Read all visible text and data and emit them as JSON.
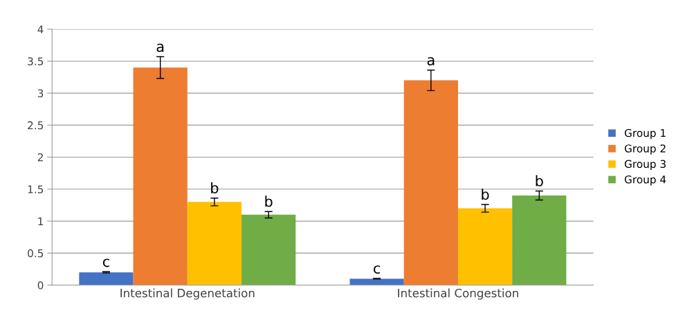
{
  "chart_data": {
    "type": "bar",
    "categories": [
      "Intestinal Degenetation",
      "Intestinal Congestion"
    ],
    "series": [
      {
        "name": "Group 1",
        "color": "#4472c4",
        "values": [
          0.2,
          0.1
        ],
        "errors": [
          0.01,
          0.005
        ],
        "value_labels": [
          "c",
          "c"
        ]
      },
      {
        "name": "Group 2",
        "color": "#ed7d31",
        "values": [
          3.4,
          3.2
        ],
        "errors": [
          0.17,
          0.16
        ],
        "value_labels": [
          "a",
          "a"
        ]
      },
      {
        "name": "Group 3",
        "color": "#ffc000",
        "values": [
          1.3,
          1.2
        ],
        "errors": [
          0.06,
          0.06
        ],
        "value_labels": [
          "b",
          "b"
        ]
      },
      {
        "name": "Group 4",
        "color": "#70ad47",
        "values": [
          1.1,
          1.4
        ],
        "errors": [
          0.05,
          0.07
        ],
        "value_labels": [
          "b",
          "b"
        ]
      }
    ],
    "ylim": [
      0,
      4
    ],
    "yticks": [
      0,
      0.5,
      1,
      1.5,
      2,
      2.5,
      3,
      3.5,
      4
    ],
    "grid": "y",
    "legend": "right"
  }
}
